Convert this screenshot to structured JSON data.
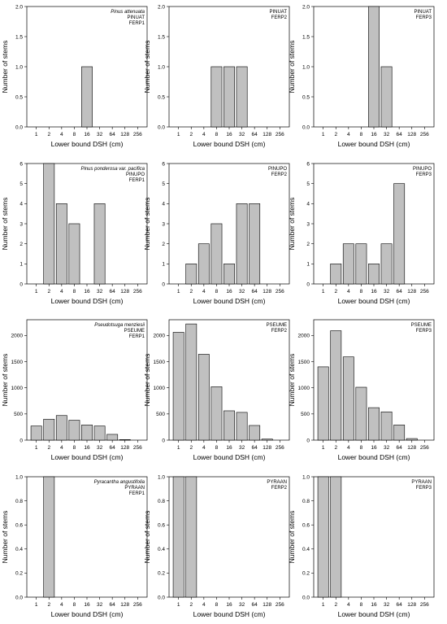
{
  "chart_data": [
    {
      "type": "bar",
      "row": 0,
      "col": 0,
      "species": "Pinus attenuata",
      "code": "PINUAT",
      "plot": "FERP1",
      "categories": [
        "1",
        "2",
        "4",
        "8",
        "16",
        "32",
        "64",
        "128",
        "256"
      ],
      "values": [
        0,
        0,
        0,
        0,
        1,
        0,
        0,
        0,
        0
      ],
      "ylim": [
        0,
        2.0
      ],
      "yticks": [
        "0.0",
        "0.5",
        "1.0",
        "1.5",
        "2.0"
      ],
      "xlabel": "Lower bound DSH (cm)",
      "ylabel": "Number of stems"
    },
    {
      "type": "bar",
      "row": 0,
      "col": 1,
      "species": "",
      "code": "PINUAT",
      "plot": "FERP2",
      "categories": [
        "1",
        "2",
        "4",
        "8",
        "16",
        "32",
        "64",
        "128",
        "256"
      ],
      "values": [
        0,
        0,
        0,
        1,
        1,
        1,
        0,
        0,
        0
      ],
      "ylim": [
        0,
        2.0
      ],
      "yticks": [
        "0.0",
        "0.5",
        "1.0",
        "1.5",
        "2.0"
      ],
      "xlabel": "Lower bound DSH (cm)",
      "ylabel": "Number of stems"
    },
    {
      "type": "bar",
      "row": 0,
      "col": 2,
      "species": "",
      "code": "PINUAT",
      "plot": "FERP3",
      "categories": [
        "1",
        "2",
        "4",
        "8",
        "16",
        "32",
        "64",
        "128",
        "256"
      ],
      "values": [
        0,
        0,
        0,
        0,
        2,
        1,
        0,
        0,
        0
      ],
      "ylim": [
        0,
        2.0
      ],
      "yticks": [
        "0.0",
        "0.5",
        "1.0",
        "1.5",
        "2.0"
      ],
      "xlabel": "Lower bound DSH (cm)",
      "ylabel": "Number of stems"
    },
    {
      "type": "bar",
      "row": 1,
      "col": 0,
      "species": "Pinus ponderosa var. pacifica",
      "code": "PINUPO",
      "plot": "FERP1",
      "categories": [
        "1",
        "2",
        "4",
        "8",
        "16",
        "32",
        "64",
        "128",
        "256"
      ],
      "values": [
        0,
        6,
        4,
        3,
        0,
        4,
        0,
        0,
        0
      ],
      "ylim": [
        0,
        6
      ],
      "yticks": [
        "0",
        "1",
        "2",
        "3",
        "4",
        "5",
        "6"
      ],
      "xlabel": "Lower bound DSH (cm)",
      "ylabel": "Number of stems"
    },
    {
      "type": "bar",
      "row": 1,
      "col": 1,
      "species": "",
      "code": "PINUPO",
      "plot": "FERP2",
      "categories": [
        "1",
        "2",
        "4",
        "8",
        "16",
        "32",
        "64",
        "128",
        "256"
      ],
      "values": [
        0,
        1,
        2,
        3,
        1,
        4,
        4,
        0,
        0
      ],
      "ylim": [
        0,
        6
      ],
      "yticks": [
        "0",
        "1",
        "2",
        "3",
        "4",
        "5",
        "6"
      ],
      "xlabel": "Lower bound DSH (cm)",
      "ylabel": "Number of stems"
    },
    {
      "type": "bar",
      "row": 1,
      "col": 2,
      "species": "",
      "code": "PINUPO",
      "plot": "FERP3",
      "categories": [
        "1",
        "2",
        "4",
        "8",
        "16",
        "32",
        "64",
        "128",
        "256"
      ],
      "values": [
        0,
        1,
        2,
        2,
        1,
        2,
        5,
        0,
        0
      ],
      "ylim": [
        0,
        6
      ],
      "yticks": [
        "0",
        "1",
        "2",
        "3",
        "4",
        "5",
        "6"
      ],
      "xlabel": "Lower bound DSH (cm)",
      "ylabel": "Number of stems"
    },
    {
      "type": "bar",
      "row": 2,
      "col": 0,
      "species": "Pseudotsuga menziesii",
      "code": "PSEUME",
      "plot": "FERP1",
      "categories": [
        "1",
        "2",
        "4",
        "8",
        "16",
        "32",
        "64",
        "128",
        "256"
      ],
      "values": [
        270,
        400,
        470,
        380,
        290,
        270,
        110,
        10,
        0
      ],
      "ylim": [
        0,
        2300
      ],
      "yticks": [
        "0",
        "500",
        "1000",
        "1500",
        "2000"
      ],
      "xlabel": "Lower bound DSH (cm)",
      "ylabel": "Number of stems"
    },
    {
      "type": "bar",
      "row": 2,
      "col": 1,
      "species": "",
      "code": "PSEUME",
      "plot": "FERP2",
      "categories": [
        "1",
        "2",
        "4",
        "8",
        "16",
        "32",
        "64",
        "128",
        "256"
      ],
      "values": [
        2060,
        2220,
        1640,
        1020,
        560,
        530,
        280,
        20,
        0
      ],
      "ylim": [
        0,
        2300
      ],
      "yticks": [
        "0",
        "500",
        "1000",
        "1500",
        "2000"
      ],
      "xlabel": "Lower bound DSH (cm)",
      "ylabel": "Number of stems"
    },
    {
      "type": "bar",
      "row": 2,
      "col": 2,
      "species": "",
      "code": "PSEUME",
      "plot": "FERP3",
      "categories": [
        "1",
        "2",
        "4",
        "8",
        "16",
        "32",
        "64",
        "128",
        "256"
      ],
      "values": [
        1400,
        2090,
        1590,
        1010,
        620,
        540,
        290,
        30,
        0
      ],
      "ylim": [
        0,
        2300
      ],
      "yticks": [
        "0",
        "500",
        "1000",
        "1500",
        "2000"
      ],
      "xlabel": "Lower bound DSH (cm)",
      "ylabel": "Number of stems"
    },
    {
      "type": "bar",
      "row": 3,
      "col": 0,
      "species": "Pyracantha angustifolia",
      "code": "PYRAAN",
      "plot": "FERP1",
      "categories": [
        "1",
        "2",
        "4",
        "8",
        "16",
        "32",
        "64",
        "128",
        "256"
      ],
      "values": [
        0,
        1,
        0,
        0,
        0,
        0,
        0,
        0,
        0
      ],
      "ylim": [
        0,
        1.0
      ],
      "yticks": [
        "0.0",
        "0.2",
        "0.4",
        "0.6",
        "0.8",
        "1.0"
      ],
      "xlabel": "Lower bound DSH (cm)",
      "ylabel": "Number of stems"
    },
    {
      "type": "bar",
      "row": 3,
      "col": 1,
      "species": "",
      "code": "PYRAAN",
      "plot": "FERP2",
      "categories": [
        "1",
        "2",
        "4",
        "8",
        "16",
        "32",
        "64",
        "128",
        "256"
      ],
      "values": [
        1,
        1,
        0,
        0,
        0,
        0,
        0,
        0,
        0
      ],
      "ylim": [
        0,
        1.0
      ],
      "yticks": [
        "0.0",
        "0.2",
        "0.4",
        "0.6",
        "0.8",
        "1.0"
      ],
      "xlabel": "Lower bound DSH (cm)",
      "ylabel": "Number of stems"
    },
    {
      "type": "bar",
      "row": 3,
      "col": 2,
      "species": "",
      "code": "PYRAAN",
      "plot": "FERP3",
      "categories": [
        "1",
        "2",
        "4",
        "8",
        "16",
        "32",
        "64",
        "128",
        "256"
      ],
      "values": [
        1,
        1,
        0,
        0,
        0,
        0,
        0,
        0,
        0
      ],
      "ylim": [
        0,
        1.0
      ],
      "yticks": [
        "0.0",
        "0.2",
        "0.4",
        "0.6",
        "0.8",
        "1.0"
      ],
      "xlabel": "Lower bound DSH (cm)",
      "ylabel": "Number of stems"
    }
  ],
  "colors": {
    "bar_fill": "#c0c0c0",
    "bar_stroke": "#000000",
    "axis": "#000000"
  }
}
